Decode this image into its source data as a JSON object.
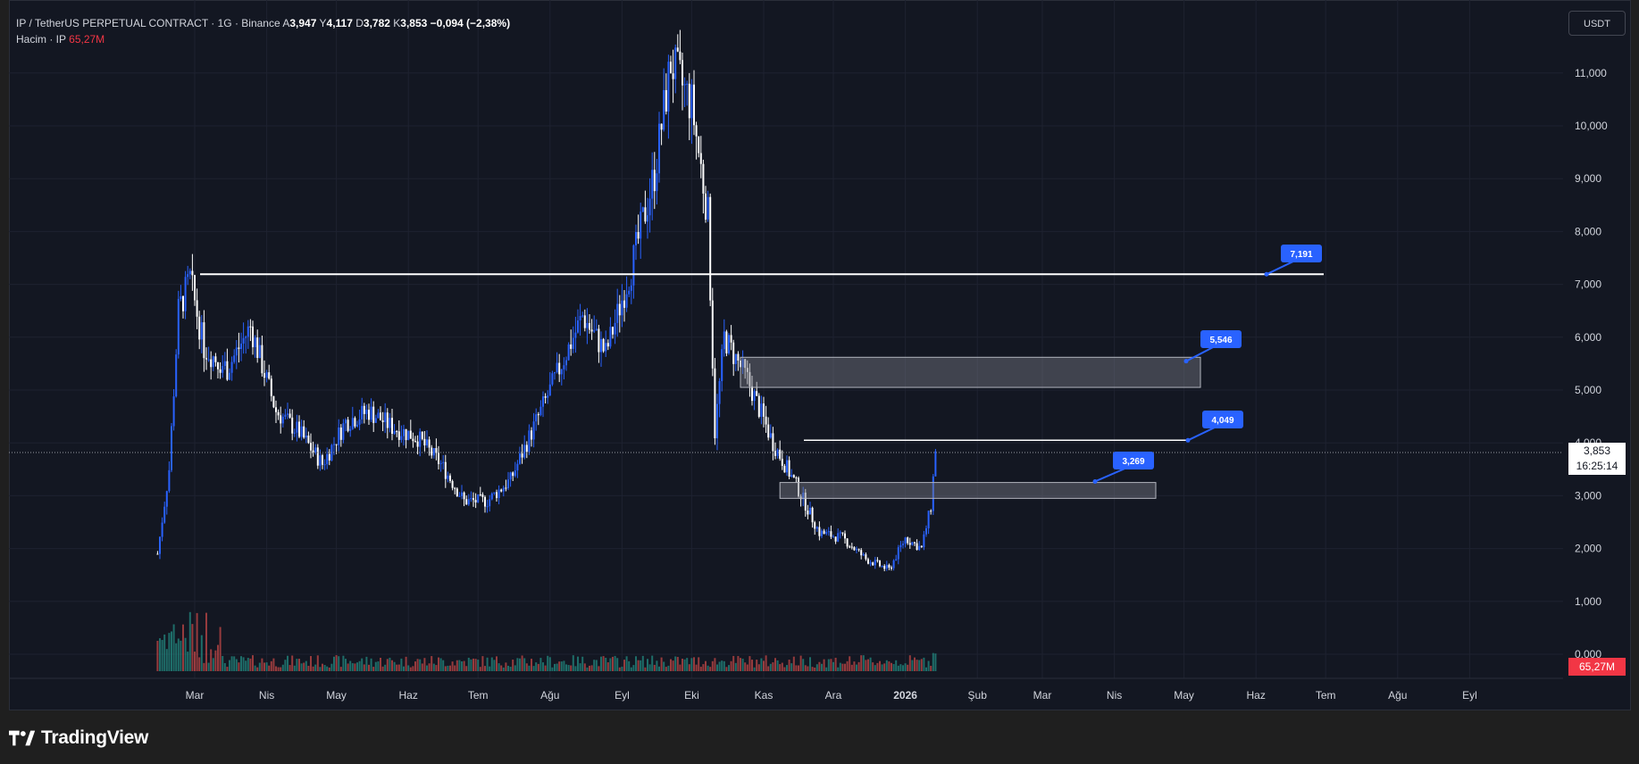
{
  "legend": {
    "symbol_line": "IP / TetherUS PERPETUAL CONTRACT · 1G · Binance",
    "open_label": "A",
    "open": "3,947",
    "high_label": "Y",
    "high": "4,117",
    "low_label": "D",
    "low": "3,782",
    "close_label": "K",
    "close": "3,853",
    "change": "−0,094 (−2,38%)",
    "volume_label": "Hacim · IP",
    "volume_value": "65,27M"
  },
  "currency_button": "USDT",
  "price_axis": {
    "labels": [
      "11,000",
      "10,000",
      "9,000",
      "8,000",
      "7,000",
      "6,000",
      "5,000",
      "4,000",
      "3,000",
      "2,000",
      "1,000",
      "0,000"
    ],
    "last_price": "3,853",
    "countdown": "16:25:14",
    "volume_last": "65,27M"
  },
  "time_axis": {
    "labels": [
      "Mar",
      "Nis",
      "May",
      "Haz",
      "Tem",
      "Ağu",
      "Eyl",
      "Eki",
      "Kas",
      "Ara",
      "2026",
      "Şub",
      "Mar",
      "Nis",
      "May",
      "Haz",
      "Tem",
      "Ağu",
      "Eyl"
    ]
  },
  "annotations": [
    {
      "label": "7,191",
      "value": 7.191
    },
    {
      "label": "5,546",
      "value": 5.546
    },
    {
      "label": "4,049",
      "value": 4.049
    },
    {
      "label": "3,269",
      "value": 3.269
    }
  ],
  "zones": [
    {
      "from": 5.05,
      "to": 5.62
    },
    {
      "from": 2.95,
      "to": 3.25
    }
  ],
  "footer": {
    "brand": "TradingView"
  },
  "colors": {
    "background": "#131722",
    "up": "#2962ff",
    "down": "#ffffff",
    "vol_up": "#26a69a",
    "vol_down": "#ef5350",
    "label": "#2962ff"
  },
  "chart_data": {
    "type": "candlestick",
    "title": "IP / TetherUS PERPETUAL CONTRACT · 1G · Binance",
    "ylim": [
      0,
      11.5
    ],
    "series": [
      {
        "name": "IP",
        "points": [
          [
            "2025-02-13",
            1.9
          ],
          [
            "2025-02-18",
            3.5
          ],
          [
            "2025-02-22",
            6.5
          ],
          [
            "2025-02-27",
            7.1
          ],
          [
            "2025-03-05",
            5.8
          ],
          [
            "2025-03-15",
            5.4
          ],
          [
            "2025-03-25",
            6.2
          ],
          [
            "2025-04-05",
            4.6
          ],
          [
            "2025-04-15",
            4.2
          ],
          [
            "2025-04-25",
            3.6
          ],
          [
            "2025-05-05",
            4.4
          ],
          [
            "2025-05-15",
            4.6
          ],
          [
            "2025-05-25",
            4.3
          ],
          [
            "2025-06-05",
            4.1
          ],
          [
            "2025-06-15",
            3.6
          ],
          [
            "2025-06-25",
            2.9
          ],
          [
            "2025-07-05",
            2.9
          ],
          [
            "2025-07-15",
            3.3
          ],
          [
            "2025-07-25",
            4.3
          ],
          [
            "2025-08-05",
            5.4
          ],
          [
            "2025-08-15",
            6.4
          ],
          [
            "2025-08-25",
            5.7
          ],
          [
            "2025-09-05",
            7.3
          ],
          [
            "2025-09-15",
            9.1
          ],
          [
            "2025-09-22",
            11.2
          ],
          [
            "2025-10-01",
            10.4
          ],
          [
            "2025-10-08",
            8.3
          ],
          [
            "2025-10-11",
            4.2
          ],
          [
            "2025-10-15",
            6.0
          ],
          [
            "2025-10-25",
            5.2
          ],
          [
            "2025-11-05",
            4.0
          ],
          [
            "2025-11-15",
            3.2
          ],
          [
            "2025-11-25",
            2.3
          ],
          [
            "2025-12-05",
            2.2
          ],
          [
            "2025-12-15",
            1.8
          ],
          [
            "2025-12-25",
            1.6
          ],
          [
            "2026-01-01",
            2.2
          ],
          [
            "2026-01-08",
            2.0
          ],
          [
            "2026-01-12",
            2.8
          ],
          [
            "2026-01-14",
            3.85
          ]
        ]
      }
    ],
    "levels": [
      7.191,
      5.546,
      4.049,
      3.269
    ],
    "current_price": 3.853
  }
}
